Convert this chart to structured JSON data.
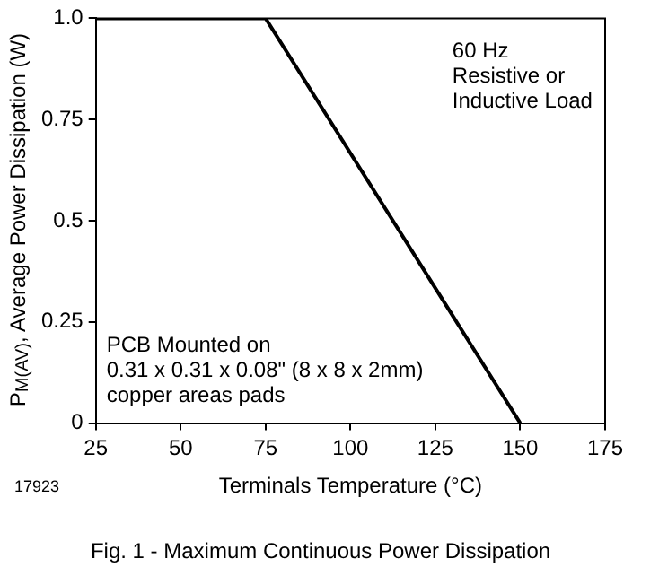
{
  "chart_data": {
    "type": "line",
    "title": "Fig. 1 - Maximum Continuous Power Dissipation",
    "xlabel": "Terminals Temperature (°C)",
    "ylabel": "P$_{M(AV)}$, Average Power Dissipation (W)",
    "x": [
      25,
      75,
      150
    ],
    "series": [
      {
        "color": "#000000",
        "values": [
          1.0,
          1.0,
          0
        ]
      }
    ],
    "xlim": [
      25,
      175
    ],
    "xticks": [
      25,
      50,
      75,
      100,
      125,
      150,
      175
    ],
    "ylim": [
      0,
      1.0
    ],
    "yticks": [
      0,
      0.25,
      0.5,
      0.75,
      {
        "value": 1.0,
        "label": "1.0"
      }
    ],
    "grid": false,
    "legend": false,
    "marker": "none",
    "line_style": "solid",
    "annotations": [
      "60 Hz\nResistive or\nInductive Load",
      "PCB Mounted on\n0.31 x 0.31 x 0.08\" (8 x 8 x 2mm)\ncopper areas pads",
      "17923"
    ]
  }
}
